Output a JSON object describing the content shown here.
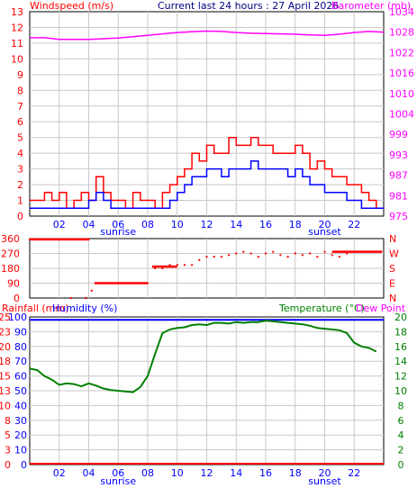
{
  "header": {
    "title": "Current last 24 hours : 27 April 2026"
  },
  "colors": {
    "windspeed": "#ff0000",
    "windspeed_avg": "#0000ff",
    "barometer": "#ff00ff",
    "direction": "#ff0000",
    "rainfall": "#ff0000",
    "humidity": "#0000ff",
    "temperature": "#008000",
    "dew_point": "#ff00ff",
    "grid": "#c8c8c8",
    "frame": "#000000"
  },
  "chart_data": [
    {
      "type": "line",
      "panel": "wind-barometer",
      "left_label": "Windspeed (m/s)",
      "right_label": "Barometer (mb)",
      "y_left_ticks": [
        "0",
        "1",
        "2",
        "3",
        "4",
        "5",
        "6",
        "7",
        "8",
        "9",
        "10",
        "11",
        "12",
        "13"
      ],
      "y_right_ticks": [
        "975",
        "981",
        "987",
        "993",
        "999",
        "1004",
        "1010",
        "1016",
        "1022",
        "1028",
        "1034"
      ],
      "ylim_left": [
        0,
        13
      ],
      "ylim_right": [
        975,
        1034
      ],
      "x_ticks": [
        "02",
        "04",
        "06",
        "08",
        "10",
        "12",
        "14",
        "16",
        "18",
        "20",
        "22"
      ],
      "x_markers": [
        {
          "label": "sunrise",
          "hour": 6
        },
        {
          "label": "sunset",
          "hour": 20
        }
      ],
      "xlim_hours": [
        0,
        24
      ],
      "grid": true,
      "series": [
        {
          "name": "Windspeed",
          "hours": [
            0,
            0.5,
            1,
            1.5,
            2,
            2.5,
            3,
            3.5,
            4,
            4.5,
            5,
            5.5,
            6,
            6.5,
            7,
            7.5,
            8,
            8.5,
            9,
            9.5,
            10,
            10.5,
            11,
            11.5,
            12,
            12.5,
            13,
            13.5,
            14,
            14.5,
            15,
            15.5,
            16,
            16.5,
            17,
            17.5,
            18,
            18.5,
            19,
            19.5,
            20,
            20.5,
            21,
            21.5,
            22,
            22.5,
            23,
            23.5
          ],
          "values": [
            1,
            1,
            1.5,
            1,
            1.5,
            0.5,
            1,
            1.5,
            1,
            2.5,
            1.5,
            1,
            1,
            0.5,
            1.5,
            1,
            1,
            0.5,
            1.5,
            2,
            2.5,
            3,
            4,
            3.5,
            4.5,
            4,
            4,
            5,
            4.5,
            4.5,
            5,
            4.5,
            4.5,
            4,
            4,
            4,
            4.5,
            4,
            3,
            3.5,
            3,
            2.5,
            2.5,
            2,
            2,
            1.5,
            1,
            0.5
          ]
        },
        {
          "name": "Wind average",
          "hours": [
            0,
            0.5,
            1,
            1.5,
            2,
            2.5,
            3,
            3.5,
            4,
            4.5,
            5,
            5.5,
            6,
            6.5,
            7,
            7.5,
            8,
            8.5,
            9,
            9.5,
            10,
            10.5,
            11,
            11.5,
            12,
            12.5,
            13,
            13.5,
            14,
            14.5,
            15,
            15.5,
            16,
            16.5,
            17,
            17.5,
            18,
            18.5,
            19,
            19.5,
            20,
            20.5,
            21,
            21.5,
            22,
            22.5,
            23,
            23.5
          ],
          "values": [
            0.5,
            0.5,
            0.5,
            0.5,
            0.5,
            0.5,
            0.5,
            0.5,
            1,
            1.5,
            1,
            0.5,
            0.5,
            0.5,
            0.5,
            0.5,
            0.5,
            0.5,
            0.5,
            1,
            1.5,
            2,
            2.5,
            2.5,
            3,
            3,
            2.5,
            3,
            3,
            3,
            3.5,
            3,
            3,
            3,
            3,
            2.5,
            3,
            2.5,
            2,
            2,
            1.5,
            1.5,
            1.5,
            1,
            1,
            0.5,
            0.5,
            0.5
          ]
        },
        {
          "name": "Barometer",
          "axis": "right",
          "hours": [
            0,
            1,
            2,
            3,
            4,
            5,
            6,
            7,
            8,
            9,
            10,
            11,
            12,
            13,
            14,
            15,
            16,
            17,
            18,
            19,
            20,
            21,
            22,
            23,
            24
          ],
          "values": [
            1026.5,
            1026.5,
            1026,
            1026,
            1026,
            1026.2,
            1026.4,
            1026.8,
            1027.2,
            1027.6,
            1028,
            1028.2,
            1028.4,
            1028.3,
            1028,
            1027.8,
            1027.7,
            1027.6,
            1027.5,
            1027.3,
            1027.2,
            1027.5,
            1028,
            1028.3,
            1028.1
          ]
        }
      ]
    },
    {
      "type": "scatter",
      "panel": "wind-direction",
      "y_left_ticks": [
        "0",
        "90",
        "180",
        "270",
        "360"
      ],
      "y_right_ticks": [
        "N",
        "E",
        "S",
        "W",
        "N"
      ],
      "ylim": [
        0,
        360
      ],
      "xlim_hours": [
        0,
        24
      ],
      "grid": true,
      "series": [
        {
          "name": "Wind direction",
          "hours": [
            0,
            0.5,
            1,
            1.5,
            2,
            2.5,
            3,
            3.5,
            4,
            2.8,
            3.8,
            4.2,
            5,
            6,
            7,
            8,
            8.5,
            9,
            9.5,
            10,
            10.5,
            11,
            11.5,
            12,
            12.5,
            13,
            13.5,
            14,
            14.5,
            15,
            15.5,
            16,
            16.5,
            17,
            17.5,
            18,
            18.5,
            19,
            19.5,
            20,
            20.5,
            21,
            21.5,
            22,
            22.5,
            23,
            23.5
          ],
          "values": [
            355,
            355,
            355,
            355,
            355,
            355,
            355,
            355,
            355,
            0,
            0,
            45,
            90,
            90,
            90,
            90,
            180,
            180,
            200,
            200,
            200,
            200,
            230,
            250,
            250,
            250,
            260,
            270,
            280,
            270,
            250,
            270,
            280,
            260,
            250,
            270,
            260,
            270,
            250,
            280,
            260,
            250,
            270,
            280,
            280,
            280,
            280
          ]
        }
      ]
    },
    {
      "type": "line",
      "panel": "rain-humidity-temperature",
      "left_labels": [
        "Rainfall (mm)",
        "Humidity (%)"
      ],
      "right_labels": [
        "Temperature (°C)",
        "Dew Point"
      ],
      "y_rain_ticks": [
        "0",
        "3",
        "5",
        "8",
        "10",
        "13",
        "15",
        "18",
        "20",
        "23",
        "25"
      ],
      "y_humidity_ticks": [
        "0",
        "10",
        "20",
        "30",
        "40",
        "50",
        "60",
        "70",
        "80",
        "90",
        "100"
      ],
      "y_right_ticks": [
        "0",
        "2",
        "4",
        "6",
        "8",
        "10",
        "12",
        "14",
        "16",
        "18",
        "20"
      ],
      "ylim_rain": [
        0,
        25
      ],
      "ylim_humidity": [
        0,
        100
      ],
      "ylim_temperature": [
        0,
        20
      ],
      "x_ticks": [
        "02",
        "04",
        "06",
        "08",
        "10",
        "12",
        "14",
        "16",
        "18",
        "20",
        "22"
      ],
      "x_markers": [
        {
          "label": "sunrise",
          "hour": 6
        },
        {
          "label": "sunset",
          "hour": 20
        }
      ],
      "xlim_hours": [
        0,
        24
      ],
      "grid": true,
      "series": [
        {
          "name": "Temperature",
          "axis": "right",
          "hours": [
            0,
            0.5,
            1,
            1.5,
            2,
            2.5,
            3,
            3.5,
            4,
            4.5,
            5,
            5.5,
            6,
            6.5,
            7,
            7.5,
            8,
            8.5,
            9,
            9.5,
            10,
            10.5,
            11,
            11.5,
            12,
            12.5,
            13,
            13.5,
            14,
            14.5,
            15,
            15.5,
            16,
            16.5,
            17,
            17.5,
            18,
            18.5,
            19,
            19.5,
            20,
            20.5,
            21,
            21.5,
            22,
            22.5,
            23,
            23.5
          ],
          "values": [
            13,
            12.8,
            12,
            11.5,
            10.8,
            11,
            10.9,
            10.6,
            11,
            10.7,
            10.3,
            10.1,
            10,
            9.9,
            9.8,
            10.5,
            12,
            15,
            17.8,
            18.3,
            18.5,
            18.6,
            18.9,
            19,
            18.9,
            19.2,
            19.2,
            19.1,
            19.3,
            19.2,
            19.3,
            19.3,
            19.5,
            19.4,
            19.3,
            19.2,
            19.1,
            19,
            18.8,
            18.5,
            18.4,
            18.3,
            18.2,
            17.8,
            16.5,
            16,
            15.8,
            15.3
          ]
        },
        {
          "name": "Humidity",
          "axis": "humidity",
          "hours": [
            0,
            24
          ],
          "values": [
            98,
            98
          ]
        },
        {
          "name": "Rainfall",
          "axis": "rain",
          "hours": [
            0,
            24
          ],
          "values": [
            0,
            0
          ]
        }
      ]
    }
  ]
}
